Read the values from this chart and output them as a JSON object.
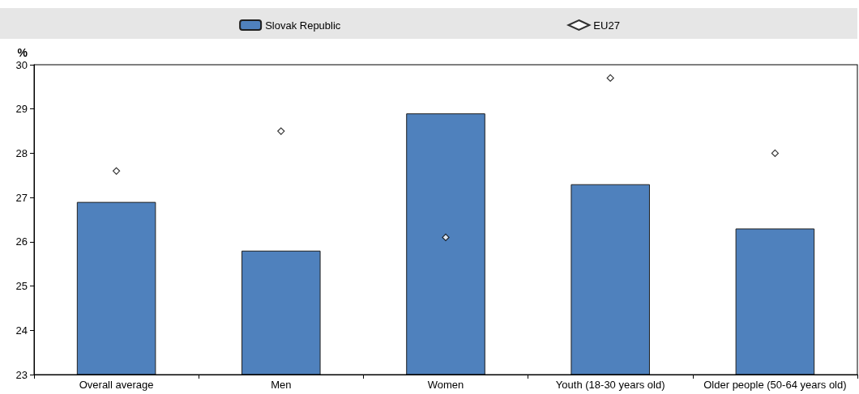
{
  "chart_data": {
    "type": "bar",
    "ylabel": "%",
    "categories": [
      "Overall average",
      "Men",
      "Women",
      "Youth (18-30 years old)",
      "Older people (50-64 years old)"
    ],
    "series": [
      {
        "name": "Slovak Republic",
        "type": "bar",
        "color": "#4f81bd",
        "values": [
          26.9,
          25.8,
          28.9,
          27.3,
          26.3
        ]
      },
      {
        "name": "EU27",
        "type": "scatter",
        "marker": "diamond",
        "color": "#ffffff",
        "values": [
          27.6,
          28.5,
          26.1,
          29.7,
          28.0
        ]
      }
    ],
    "ylim": [
      23,
      30
    ],
    "yticks": [
      23,
      24,
      25,
      26,
      27,
      28,
      29,
      30
    ],
    "grid": false,
    "legend": "top"
  }
}
